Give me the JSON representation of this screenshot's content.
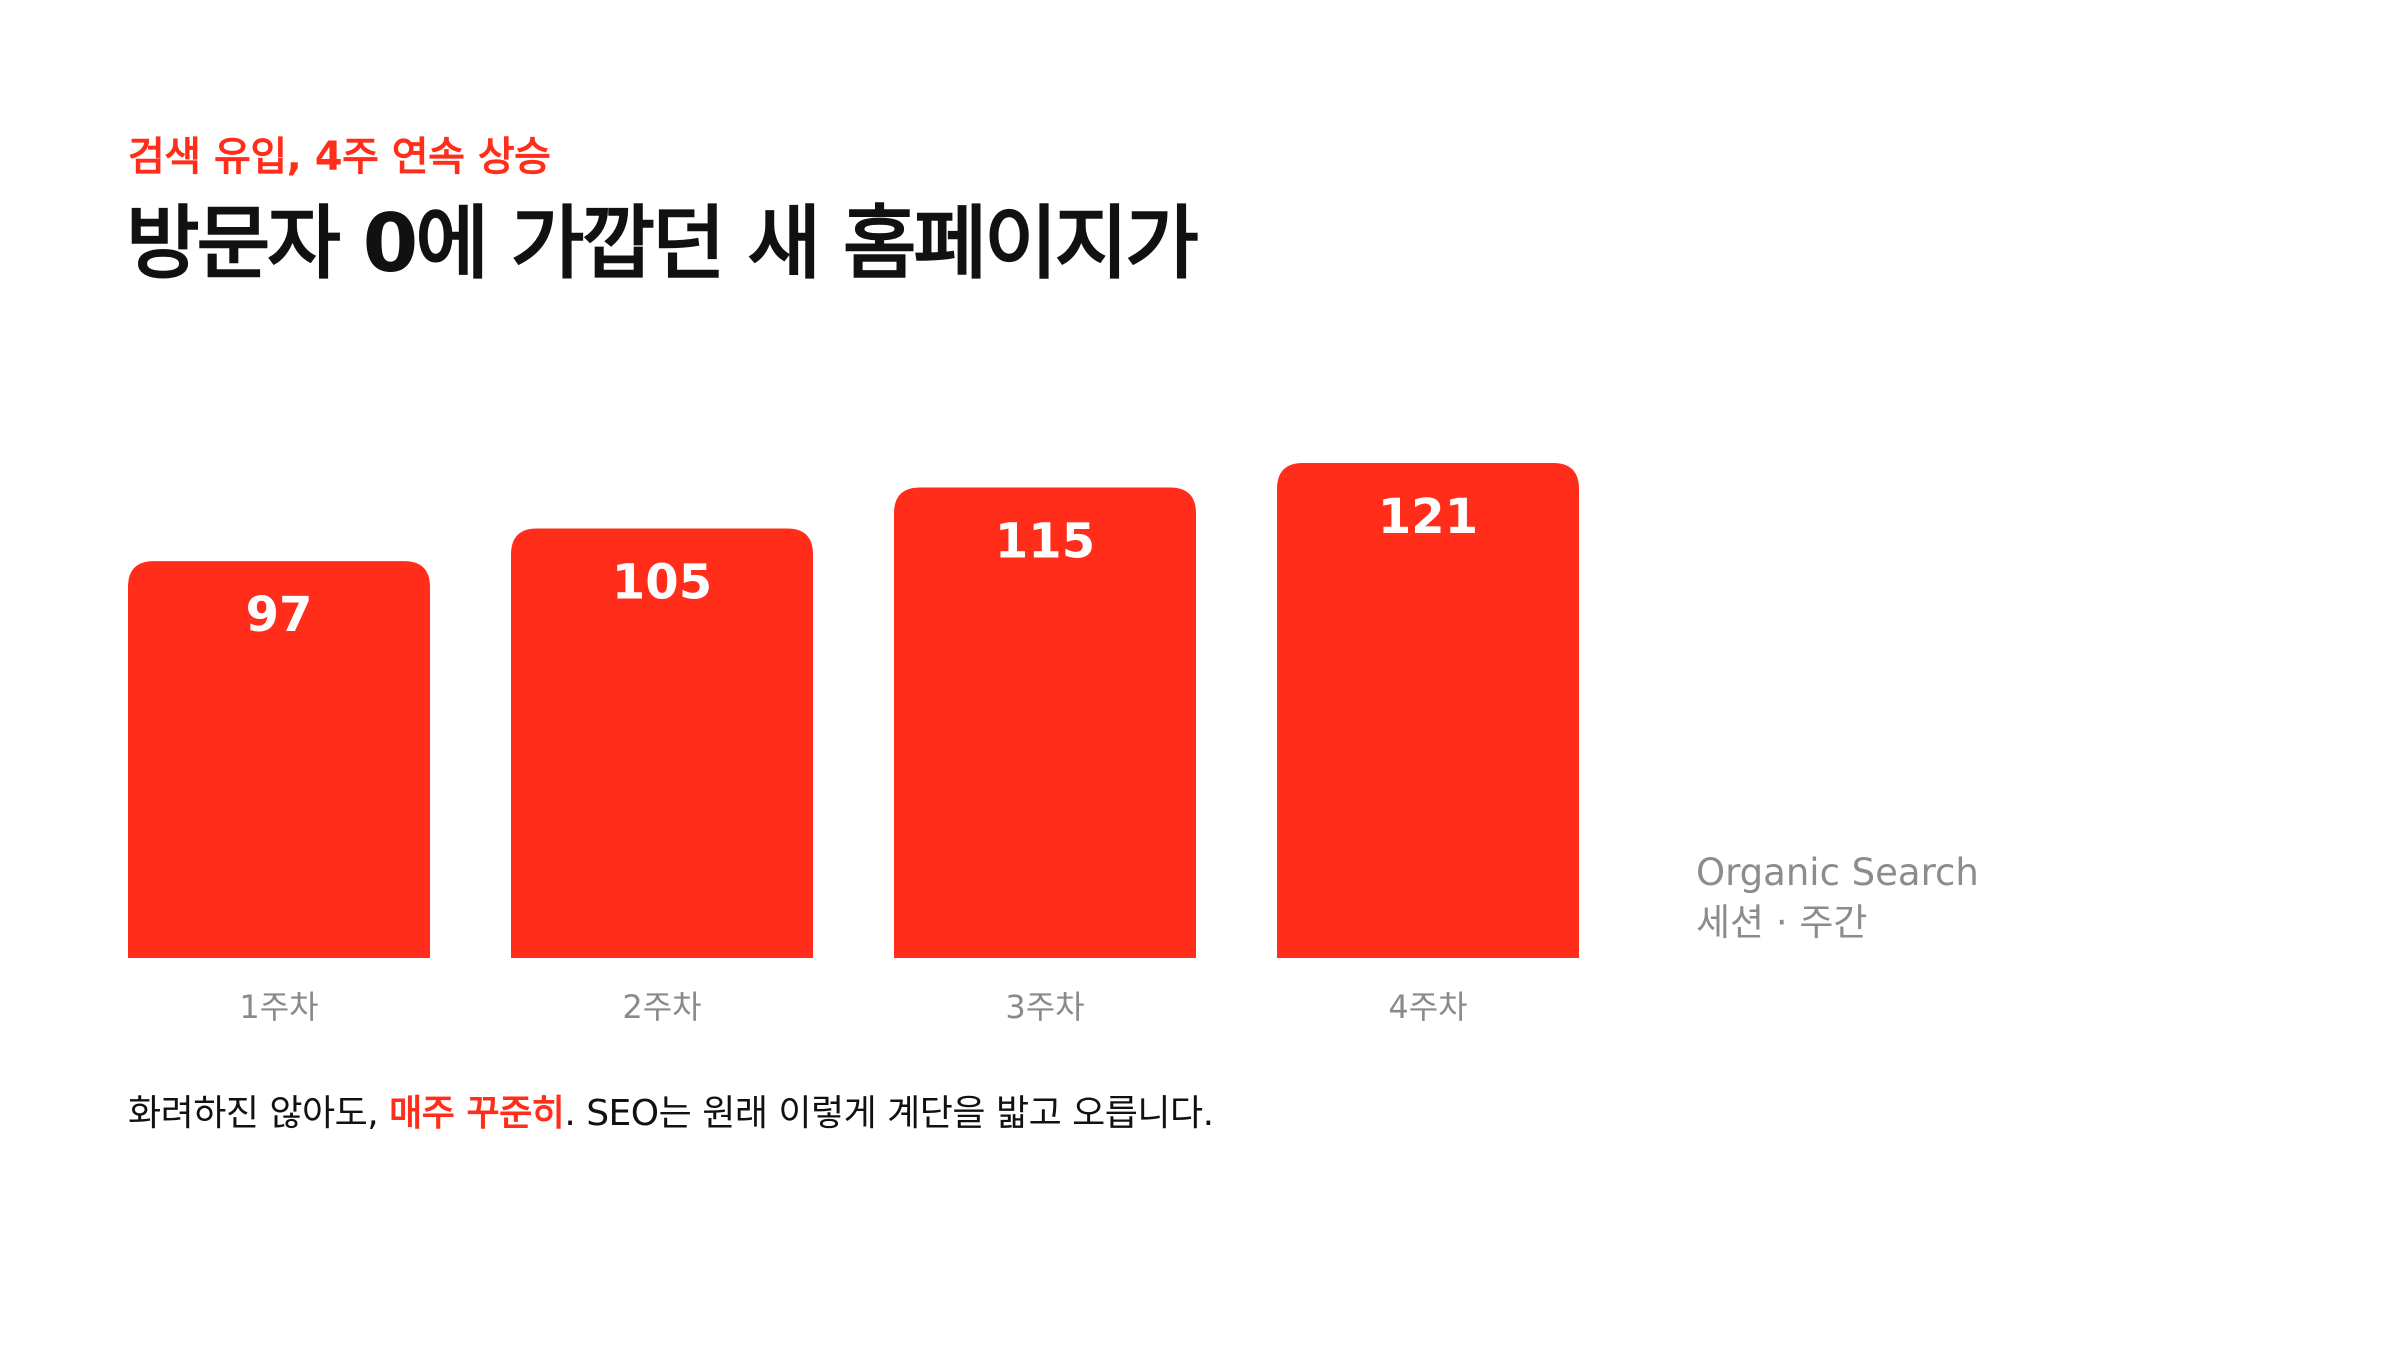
{
  "header": {
    "eyebrow": "검색 유입, 4주 연속 상승",
    "title": "방문자 0에 가깝던 새 홈페이지가"
  },
  "legend": {
    "line1": "Organic Search",
    "line2": "세션 · 주간"
  },
  "caption": {
    "before": "화려하진 않아도, ",
    "highlight": "매주 꾸준히",
    "after": ". SEO는 원래 이렇게 계단을 밟고 오릅니다."
  },
  "colors": {
    "accent": "#ff2d1a",
    "text": "#111111",
    "muted": "#8a8a8a"
  },
  "chart_data": {
    "type": "bar",
    "categories": [
      "1주차",
      "2주차",
      "3주차",
      "4주차"
    ],
    "values": [
      97,
      105,
      115,
      121
    ],
    "ylim": [
      0,
      121
    ],
    "grid": false,
    "data_labels": true
  }
}
